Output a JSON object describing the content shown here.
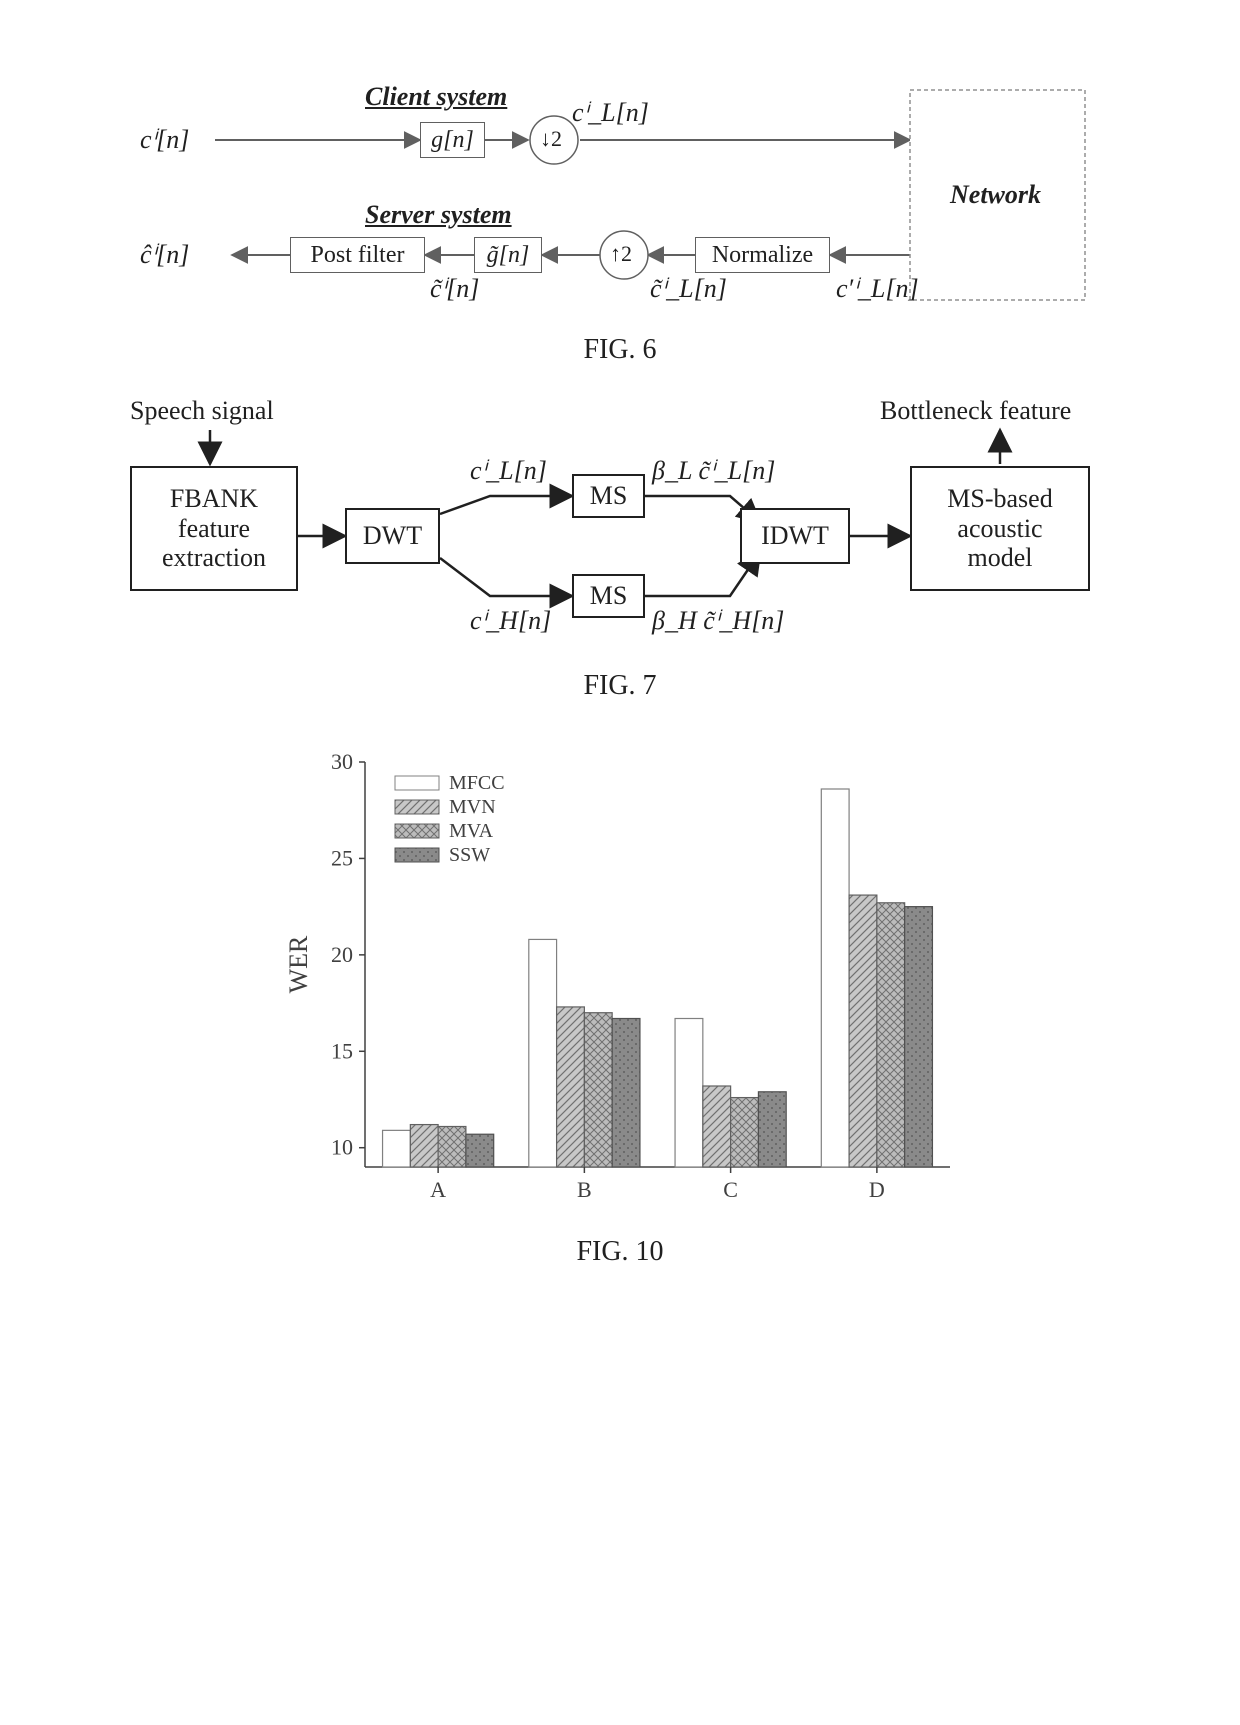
{
  "fig6": {
    "caption": "FIG. 6",
    "title_client": "Client system",
    "title_server": "Server system",
    "input": "cⁱ[n]",
    "g_box": "g[n]",
    "down2": "↓2",
    "cL_out": "cⁱ_L[n]",
    "network": "Network",
    "postfilter": "Post filter",
    "gtilde": "g̃[n]",
    "up2": "↑2",
    "normalize": "Normalize",
    "chat": "ĉⁱ[n]",
    "ctilde": "c̃ⁱ[n]",
    "cL_tilde": "c̃ⁱ_L[n]",
    "cL_prime": "c′ⁱ_L[n]"
  },
  "fig7": {
    "caption": "FIG. 7",
    "speech": "Speech signal",
    "bottleneck": "Bottleneck feature",
    "fbank": "FBANK\nfeature\nextraction",
    "dwt": "DWT",
    "ms": "MS",
    "idwt": "IDWT",
    "acoustic": "MS-based\nacoustic\nmodel",
    "cL": "cⁱ_L[n]",
    "cH": "cⁱ_H[n]",
    "bL": "β_L c̃ⁱ_L[n]",
    "bH": "β_H c̃ⁱ_H[n]"
  },
  "fig10": {
    "caption": "FIG. 10",
    "ylabel": "WER",
    "ylim": [
      9,
      30
    ],
    "yticks": [
      10,
      15,
      20,
      25,
      30
    ],
    "categories": [
      "A",
      "B",
      "C",
      "D"
    ],
    "series": [
      {
        "name": "MFCC",
        "fill": "#ffffff",
        "stroke": "#808080",
        "hatch": "none"
      },
      {
        "name": "MVN",
        "fill": "#c8c8c8",
        "stroke": "#606060",
        "hatch": "diag"
      },
      {
        "name": "MVA",
        "fill": "#bcbcbc",
        "stroke": "#606060",
        "hatch": "cross"
      },
      {
        "name": "SSW",
        "fill": "#8a8a8a",
        "stroke": "#505050",
        "hatch": "dots"
      }
    ],
    "values": {
      "A": [
        10.9,
        11.2,
        11.1,
        10.7
      ],
      "B": [
        20.8,
        17.3,
        17.0,
        16.7
      ],
      "C": [
        16.7,
        13.2,
        12.6,
        12.9
      ],
      "D": [
        28.6,
        23.1,
        22.7,
        22.5
      ]
    },
    "bar_width": 0.19,
    "axis_color": "#404040",
    "tick_fontsize": 22,
    "label_fontsize": 26,
    "legend_fontsize": 20
  }
}
